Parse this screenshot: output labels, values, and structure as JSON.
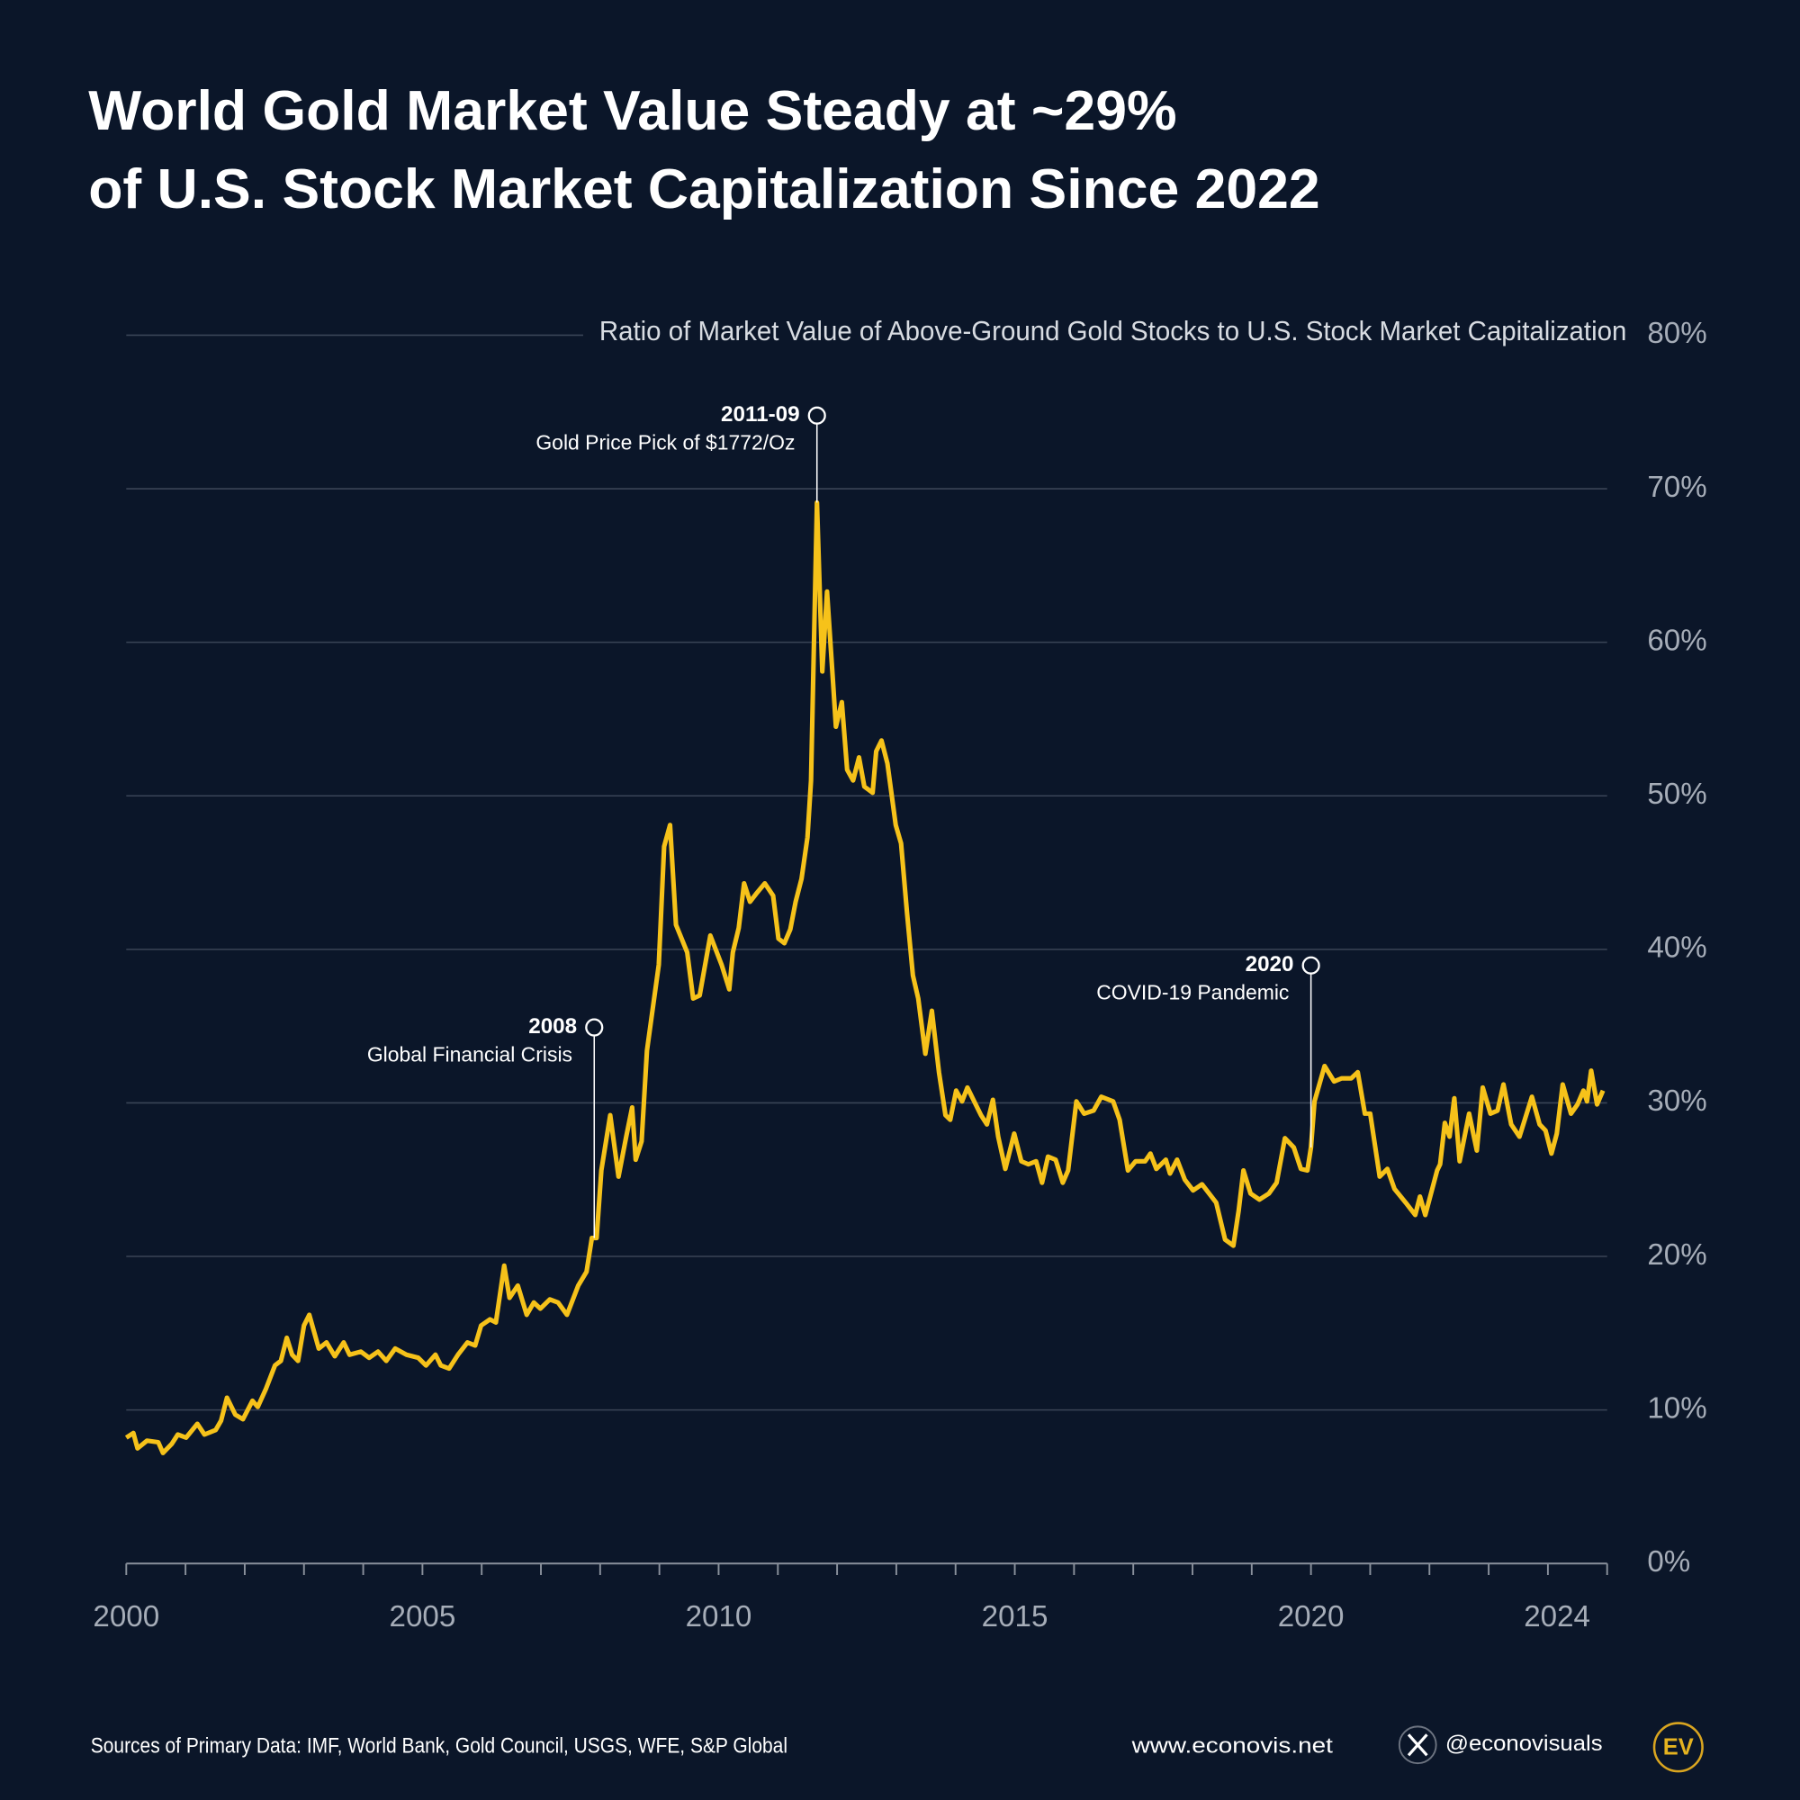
{
  "chart_data": {
    "type": "line",
    "title": [
      "World Gold Market Value Steady at ~29%",
      "of U.S. Stock Market Capitalization Since 2022"
    ],
    "subtitle": "Ratio of Market Value of Above-Ground Gold Stocks to U.S. Stock Market Capitalization",
    "color": "#f6c21a",
    "x": [
      2000.0,
      2000.12,
      2000.19,
      2000.35,
      2000.54,
      2000.62,
      2000.77,
      2000.87,
      2001.01,
      2001.2,
      2001.32,
      2001.51,
      2001.6,
      2001.7,
      2001.84,
      2001.97,
      2002.13,
      2002.22,
      2002.36,
      2002.51,
      2002.61,
      2002.71,
      2002.8,
      2002.9,
      2003.0,
      2003.09,
      2003.25,
      2003.38,
      2003.52,
      2003.67,
      2003.77,
      2003.96,
      2004.1,
      2004.25,
      2004.39,
      2004.54,
      2004.73,
      2004.93,
      2005.06,
      2005.22,
      2005.31,
      2005.45,
      2005.6,
      2005.76,
      2005.89,
      2005.99,
      2006.14,
      2006.24,
      2006.38,
      2006.47,
      2006.61,
      2006.76,
      2006.88,
      2006.99,
      2007.15,
      2007.29,
      2007.44,
      2007.63,
      2007.77,
      2007.86,
      2007.94,
      2008.02,
      2008.17,
      2008.31,
      2008.44,
      2008.54,
      2008.6,
      2008.7,
      2008.79,
      2008.99,
      2009.08,
      2009.18,
      2009.28,
      2009.47,
      2009.57,
      2009.68,
      2009.86,
      2010.05,
      2010.18,
      2010.24,
      2010.34,
      2010.43,
      2010.53,
      2010.63,
      2010.78,
      2010.92,
      2011.01,
      2011.11,
      2011.21,
      2011.3,
      2011.4,
      2011.5,
      2011.56,
      2011.66,
      2011.75,
      2011.83,
      2011.93,
      2011.98,
      2012.08,
      2012.17,
      2012.27,
      2012.37,
      2012.46,
      2012.6,
      2012.66,
      2012.75,
      2012.85,
      2012.99,
      2013.08,
      2013.18,
      2013.28,
      2013.37,
      2013.49,
      2013.6,
      2013.72,
      2013.83,
      2013.91,
      2014.01,
      2014.11,
      2014.2,
      2014.34,
      2014.43,
      2014.53,
      2014.63,
      2014.72,
      2014.84,
      2014.99,
      2015.11,
      2015.23,
      2015.36,
      2015.46,
      2015.56,
      2015.69,
      2015.81,
      2015.9,
      2016.04,
      2016.17,
      2016.33,
      2016.46,
      2016.66,
      2016.77,
      2016.91,
      2017.04,
      2017.2,
      2017.29,
      2017.39,
      2017.55,
      2017.62,
      2017.74,
      2017.87,
      2018.01,
      2018.16,
      2018.28,
      2018.4,
      2018.55,
      2018.69,
      2018.78,
      2018.86,
      2018.98,
      2019.13,
      2019.29,
      2019.42,
      2019.56,
      2019.71,
      2019.83,
      2019.94,
      2020.0,
      2020.06,
      2020.23,
      2020.39,
      2020.52,
      2020.68,
      2020.79,
      2020.91,
      2021.0,
      2021.16,
      2021.29,
      2021.41,
      2021.6,
      2021.76,
      2021.84,
      2021.93,
      2022.13,
      2022.18,
      2022.26,
      2022.34,
      2022.42,
      2022.51,
      2022.67,
      2022.8,
      2022.9,
      2023.03,
      2023.15,
      2023.25,
      2023.38,
      2023.52,
      2023.73,
      2023.86,
      2023.96,
      2024.06,
      2024.15,
      2024.25,
      2024.39,
      2024.5,
      2024.6,
      2024.66,
      2024.73,
      2024.83,
      2024.93
    ],
    "values": [
      8.2,
      8.5,
      7.5,
      8.0,
      7.9,
      7.2,
      7.8,
      8.4,
      8.2,
      9.1,
      8.4,
      8.7,
      9.3,
      10.8,
      9.7,
      9.4,
      10.6,
      10.2,
      11.4,
      12.9,
      13.2,
      14.7,
      13.6,
      13.2,
      15.5,
      16.2,
      14.0,
      14.4,
      13.5,
      14.4,
      13.6,
      13.8,
      13.4,
      13.8,
      13.2,
      14.0,
      13.6,
      13.4,
      12.9,
      13.6,
      12.9,
      12.7,
      13.6,
      14.4,
      14.2,
      15.5,
      15.9,
      15.7,
      19.4,
      17.3,
      18.1,
      16.2,
      17.0,
      16.6,
      17.2,
      17.0,
      16.2,
      18.1,
      19.0,
      21.2,
      21.2,
      25.6,
      29.2,
      25.2,
      27.8,
      29.7,
      26.3,
      27.5,
      33.4,
      39.0,
      46.7,
      48.1,
      41.6,
      39.8,
      36.8,
      37.0,
      40.9,
      39.0,
      37.4,
      39.8,
      41.4,
      44.3,
      43.1,
      43.6,
      44.3,
      43.5,
      40.7,
      40.4,
      41.3,
      43.1,
      44.6,
      47.3,
      51.0,
      69.1,
      58.1,
      63.3,
      57.5,
      54.5,
      56.1,
      51.7,
      51.0,
      52.5,
      50.6,
      50.2,
      52.9,
      53.6,
      52.1,
      48.1,
      46.9,
      42.4,
      38.3,
      36.8,
      33.2,
      36.0,
      32.0,
      29.2,
      28.9,
      30.8,
      30.1,
      31.0,
      29.9,
      29.2,
      28.6,
      30.2,
      27.8,
      25.7,
      28.0,
      26.2,
      26.0,
      26.2,
      24.8,
      26.5,
      26.3,
      24.8,
      25.6,
      30.1,
      29.3,
      29.5,
      30.4,
      30.1,
      28.9,
      25.6,
      26.2,
      26.2,
      26.7,
      25.7,
      26.3,
      25.4,
      26.3,
      25.0,
      24.3,
      24.7,
      24.1,
      23.5,
      21.1,
      20.7,
      23.0,
      25.6,
      24.1,
      23.7,
      24.1,
      24.8,
      27.7,
      27.1,
      25.7,
      25.6,
      27.1,
      30.1,
      32.4,
      31.4,
      31.6,
      31.6,
      32.0,
      29.3,
      29.3,
      25.2,
      25.7,
      24.4,
      23.5,
      22.7,
      23.9,
      22.7,
      25.6,
      26.0,
      28.7,
      27.8,
      30.3,
      26.2,
      29.3,
      26.9,
      31.0,
      29.3,
      29.5,
      31.2,
      28.6,
      27.8,
      30.4,
      28.6,
      28.2,
      26.7,
      28.0,
      31.2,
      29.3,
      29.9,
      30.8,
      30.1,
      32.1,
      29.9,
      30.8
    ],
    "xlim": [
      2000,
      2025
    ],
    "xticks": [
      2000,
      2005,
      2010,
      2015,
      2020,
      2024
    ],
    "xminorticks": [
      2001,
      2002,
      2003,
      2004,
      2006,
      2007,
      2008,
      2009,
      2011,
      2012,
      2013,
      2014,
      2016,
      2017,
      2018,
      2019,
      2021,
      2022,
      2023,
      2025
    ],
    "ylim": [
      0,
      80
    ],
    "yticks": [
      {
        "value": 0,
        "label": "0%"
      },
      {
        "value": 10,
        "label": "10%"
      },
      {
        "value": 20,
        "label": "20%"
      },
      {
        "value": 30,
        "label": "30%"
      },
      {
        "value": 40,
        "label": "40%"
      },
      {
        "value": 50,
        "label": "50%"
      },
      {
        "value": 60,
        "label": "60%"
      },
      {
        "value": 70,
        "label": "70%"
      },
      {
        "value": 80,
        "label": "80%"
      }
    ],
    "grid": true,
    "annotations": [
      {
        "x": 2007.9,
        "label": "2008",
        "text": "Global Financial Crisis"
      },
      {
        "x": 2011.66,
        "label": "2011-09",
        "text": "Gold Price Pick of $1772/Oz"
      },
      {
        "x": 2020.0,
        "label": "2020",
        "text": "COVID-19 Pandemic"
      }
    ]
  },
  "footer": {
    "source": "Sources of Primary Data: IMF, World Bank, Gold Council, USGS, WFE, S&P Global",
    "website": "www.econovis.net",
    "handle": "@econovisuals",
    "logo": "EV"
  }
}
